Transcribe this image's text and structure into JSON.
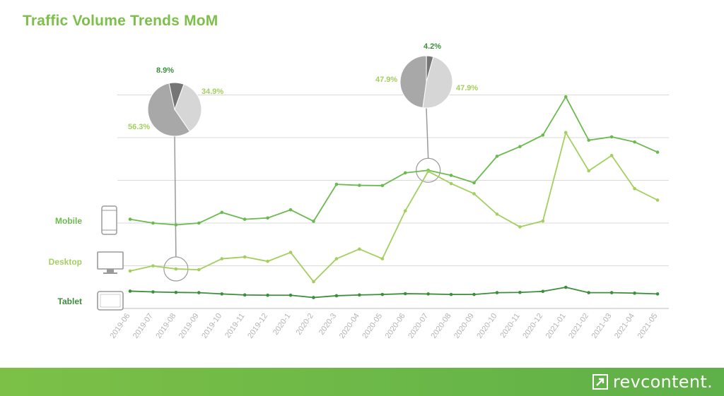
{
  "page": {
    "title": "Traffic Volume Trends MoM",
    "brand": "revcontent.",
    "brand_icon": "revcontent-logo-icon"
  },
  "colors": {
    "title": "#7cbf4a",
    "mobile": "#6aba4e",
    "desktop": "#a3cf5c",
    "tablet": "#3b8f3b",
    "grid": "#d9d9d9",
    "footer": "#6cb848"
  },
  "chart_data": {
    "type": "line",
    "title": "Traffic Volume Trends MoM",
    "x": [
      "2019-06",
      "2019-07",
      "2019-08",
      "2019-09",
      "2019-10",
      "2019-11",
      "2019-12",
      "2020-1",
      "2020-2",
      "2020-3",
      "2020-04",
      "2020-05",
      "2020-06",
      "2020-07",
      "2020-08",
      "2020-09",
      "2020-10",
      "2020-11",
      "2020-12",
      "2021-01",
      "2021-02",
      "2021-03",
      "2021-04",
      "2021-05"
    ],
    "xlabel": "",
    "ylabel": "",
    "yaxis_labels_visible": false,
    "ylim": [
      0,
      8.5
    ],
    "grid": true,
    "series": [
      {
        "name": "Mobile",
        "icon": "smartphone-icon",
        "values": [
          3.5,
          3.35,
          3.28,
          3.35,
          3.77,
          3.5,
          3.55,
          3.87,
          3.42,
          4.87,
          4.83,
          4.82,
          5.32,
          5.42,
          5.22,
          4.93,
          5.97,
          6.35,
          6.8,
          8.3,
          6.6,
          6.73,
          6.53,
          6.13
        ]
      },
      {
        "name": "Desktop",
        "icon": "desktop-monitor-icon",
        "values": [
          1.47,
          1.67,
          1.55,
          1.52,
          1.95,
          2.02,
          1.85,
          2.2,
          1.05,
          1.95,
          2.33,
          1.95,
          3.83,
          5.38,
          4.9,
          4.5,
          3.7,
          3.2,
          3.43,
          6.9,
          5.4,
          6.0,
          4.7,
          4.25
        ]
      },
      {
        "name": "Tablet",
        "icon": "tablet-icon",
        "values": [
          0.68,
          0.65,
          0.63,
          0.62,
          0.57,
          0.53,
          0.52,
          0.52,
          0.43,
          0.5,
          0.53,
          0.55,
          0.58,
          0.57,
          0.55,
          0.55,
          0.62,
          0.63,
          0.67,
          0.83,
          0.62,
          0.62,
          0.6,
          0.57
        ]
      }
    ],
    "annotations": [
      {
        "at": "2019-08",
        "on_series": "Desktop",
        "pie": [
          {
            "label": "34.9%",
            "value": 34.9,
            "color": "#d6d6d6",
            "label_position": "right"
          },
          {
            "label": "56.3%",
            "value": 56.3,
            "color": "#a8a8a8",
            "label_position": "left"
          },
          {
            "label": "8.9%",
            "value": 8.9,
            "color": "#757575",
            "label_position": "top"
          }
        ]
      },
      {
        "at": "2020-07",
        "on_series": "Mobile",
        "pie": [
          {
            "label": "47.9%",
            "value": 47.9,
            "color": "#d6d6d6",
            "label_position": "right"
          },
          {
            "label": "47.9%",
            "value": 47.9,
            "color": "#a8a8a8",
            "label_position": "left"
          },
          {
            "label": "4.2%",
            "value": 4.2,
            "color": "#757575",
            "label_position": "top"
          }
        ]
      }
    ]
  }
}
